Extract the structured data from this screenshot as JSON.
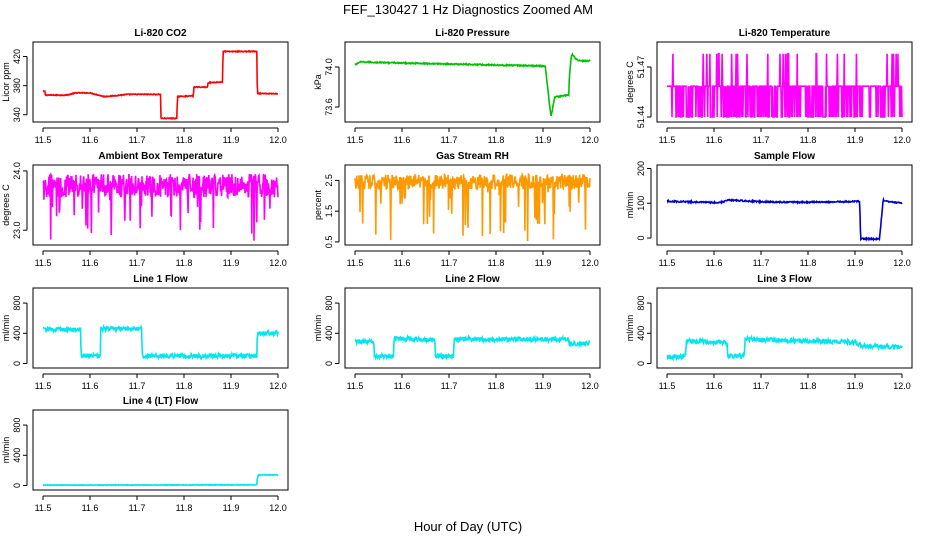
{
  "figure": {
    "title": "FEF_130427  1 Hz Diagnostics Zoomed AM",
    "xlabel": "Hour of Day (UTC)"
  },
  "chart_data": [
    {
      "id": "co2",
      "type": "line",
      "title": "Li-820 CO2",
      "ylabel": "Licor ppm",
      "color": "#ff0000",
      "xlim": [
        11.5,
        12.0
      ],
      "ylim": [
        330,
        440
      ],
      "xticks": [
        "11.5",
        "11.6",
        "11.7",
        "11.8",
        "11.9",
        "12.0"
      ],
      "yticks": [
        {
          "v": 340,
          "label": "340"
        },
        {
          "v": 380,
          "label": "380"
        },
        {
          "v": 420,
          "label": "420"
        }
      ],
      "noise": 0.6,
      "series": [
        {
          "x": [
            11.5,
            11.504,
            11.505,
            11.55,
            11.57,
            11.6,
            11.63,
            11.65,
            11.68,
            11.69,
            11.75,
            11.751,
            11.785,
            11.786,
            11.82,
            11.821,
            11.85,
            11.851,
            11.882,
            11.883,
            11.955,
            11.956,
            12.0
          ],
          "y": [
            372,
            372,
            367,
            367,
            370,
            370,
            365,
            366,
            368,
            368,
            368,
            335,
            335,
            365,
            366,
            378,
            378,
            384,
            385,
            427,
            427,
            369,
            369
          ]
        }
      ]
    },
    {
      "id": "pressure",
      "type": "line",
      "title": "Li-820 Pressure",
      "ylabel": "kPa",
      "color": "#00c000",
      "xlim": [
        11.5,
        12.0
      ],
      "ylim": [
        73.45,
        74.25
      ],
      "xticks": [
        "11.5",
        "11.6",
        "11.7",
        "11.8",
        "11.9",
        "12.0"
      ],
      "yticks": [
        {
          "v": 73.6,
          "label": "73.6"
        },
        {
          "v": 74.0,
          "label": "74.0"
        }
      ],
      "noise": 0.006,
      "series": [
        {
          "x": [
            11.5,
            11.51,
            11.6,
            11.7,
            11.8,
            11.9,
            11.905,
            11.915,
            11.917,
            11.925,
            11.955,
            11.956,
            11.96,
            11.962,
            11.97,
            11.98,
            12.0
          ],
          "y": [
            74.02,
            74.05,
            74.04,
            74.03,
            74.02,
            74.01,
            74.0,
            73.58,
            73.5,
            73.7,
            73.72,
            73.9,
            74.1,
            74.13,
            74.08,
            74.06,
            74.06
          ]
        }
      ]
    },
    {
      "id": "temperature",
      "type": "line",
      "title": "Li-820 Temperature",
      "ylabel": "degrees C",
      "color": "#ff00ff",
      "xlim": [
        11.5,
        12.0
      ],
      "ylim": [
        51.437,
        51.485
      ],
      "xticks": [
        "11.5",
        "11.6",
        "11.7",
        "11.8",
        "11.9",
        "12.0"
      ],
      "yticks": [
        {
          "v": 51.44,
          "label": "51.44"
        },
        {
          "v": 51.47,
          "label": "51.47"
        }
      ],
      "levels": [
        51.44,
        51.4585,
        51.478
      ],
      "series": []
    },
    {
      "id": "ambient",
      "type": "line",
      "title": "Ambient Box Temperature",
      "ylabel": "degrees C",
      "color": "#ff00ff",
      "xlim": [
        11.5,
        12.0
      ],
      "ylim": [
        22.75,
        24.1
      ],
      "xticks": [
        "11.5",
        "11.6",
        "11.7",
        "11.8",
        "11.9",
        "12.0"
      ],
      "yticks": [
        {
          "v": 23.0,
          "label": "23.0"
        },
        {
          "v": 24.0,
          "label": "24.0"
        }
      ],
      "band": [
        23.55,
        23.95
      ],
      "spike_min": 22.8,
      "series": []
    },
    {
      "id": "rh",
      "type": "line",
      "title": "Gas Stream RH",
      "ylabel": "percent",
      "color": "#ff9900",
      "xlim": [
        11.5,
        12.0
      ],
      "ylim": [
        0.4,
        3.0
      ],
      "xticks": [
        "11.5",
        "11.6",
        "11.7",
        "11.8",
        "11.9",
        "12.0"
      ],
      "yticks": [
        {
          "v": 0.5,
          "label": "0.5"
        },
        {
          "v": 1.5,
          "label": "1.5"
        },
        {
          "v": 2.5,
          "label": "2.5"
        }
      ],
      "band": [
        2.2,
        2.7
      ],
      "spike_min": 0.5,
      "series": []
    },
    {
      "id": "sampleflow",
      "type": "line",
      "title": "Sample Flow",
      "ylabel": "ml/min",
      "color": "#0000cc",
      "xlim": [
        11.5,
        12.0
      ],
      "ylim": [
        -20,
        210
      ],
      "xticks": [
        "11.5",
        "11.6",
        "11.7",
        "11.8",
        "11.9",
        "12.0"
      ],
      "yticks": [
        {
          "v": 0,
          "label": "0"
        },
        {
          "v": 100,
          "label": "100"
        },
        {
          "v": 200,
          "label": "200"
        }
      ],
      "noise": 2,
      "series": [
        {
          "x": [
            11.5,
            11.55,
            11.6,
            11.62,
            11.63,
            11.7,
            11.8,
            11.9,
            11.91,
            11.912,
            11.95,
            11.952,
            11.96,
            11.97,
            11.99,
            12.0
          ],
          "y": [
            106,
            104,
            102,
            104,
            110,
            104,
            103,
            105,
            106,
            -2,
            -3,
            -3,
            110,
            104,
            102,
            100
          ]
        }
      ]
    },
    {
      "id": "line1",
      "type": "line",
      "title": "Line 1 Flow",
      "ylabel": "ml/min",
      "color": "#00e5ee",
      "xlim": [
        11.5,
        12.0
      ],
      "ylim": [
        -60,
        1000
      ],
      "xticks": [
        "11.5",
        "11.6",
        "11.7",
        "11.8",
        "11.9",
        "12.0"
      ],
      "yticks": [
        {
          "v": 0,
          "label": "0"
        },
        {
          "v": 400,
          "label": "400"
        },
        {
          "v": 800,
          "label": "800"
        }
      ],
      "noise": 28,
      "series": [
        {
          "x": [
            11.5,
            11.58,
            11.581,
            11.622,
            11.623,
            11.71,
            11.711,
            11.955,
            11.956,
            12.0
          ],
          "y": [
            450,
            450,
            100,
            100,
            460,
            460,
            100,
            100,
            400,
            400
          ]
        }
      ]
    },
    {
      "id": "line2",
      "type": "line",
      "title": "Line 2 Flow",
      "ylabel": "ml/min",
      "color": "#00e5ee",
      "xlim": [
        11.5,
        12.0
      ],
      "ylim": [
        -60,
        1000
      ],
      "xticks": [
        "11.5",
        "11.6",
        "11.7",
        "11.8",
        "11.9",
        "12.0"
      ],
      "yticks": [
        {
          "v": 0,
          "label": "0"
        },
        {
          "v": 400,
          "label": "400"
        },
        {
          "v": 800,
          "label": "800"
        }
      ],
      "noise": 30,
      "series": [
        {
          "x": [
            11.5,
            11.54,
            11.541,
            11.582,
            11.583,
            11.67,
            11.671,
            11.71,
            11.711,
            11.955,
            11.956,
            12.0
          ],
          "y": [
            290,
            290,
            100,
            100,
            330,
            310,
            100,
            100,
            320,
            320,
            260,
            270
          ]
        }
      ]
    },
    {
      "id": "line3",
      "type": "line",
      "title": "Line 3 Flow",
      "ylabel": "ml/min",
      "color": "#00e5ee",
      "xlim": [
        11.5,
        12.0
      ],
      "ylim": [
        -60,
        1000
      ],
      "xticks": [
        "11.5",
        "11.6",
        "11.7",
        "11.8",
        "11.9",
        "12.0"
      ],
      "yticks": [
        {
          "v": 0,
          "label": "0"
        },
        {
          "v": 400,
          "label": "400"
        },
        {
          "v": 800,
          "label": "800"
        }
      ],
      "noise": 30,
      "series": [
        {
          "x": [
            11.5,
            11.54,
            11.541,
            11.628,
            11.629,
            11.665,
            11.666,
            11.9,
            11.91,
            11.915,
            12.0
          ],
          "y": [
            80,
            100,
            300,
            280,
            100,
            100,
            320,
            280,
            250,
            230,
            220
          ]
        }
      ]
    },
    {
      "id": "line4",
      "type": "line",
      "title": "Line 4 (LT) Flow",
      "ylabel": "ml/min",
      "color": "#00e5ee",
      "xlim": [
        11.5,
        12.0
      ],
      "ylim": [
        -60,
        1000
      ],
      "xticks": [
        "11.5",
        "11.6",
        "11.7",
        "11.8",
        "11.9",
        "12.0"
      ],
      "yticks": [
        {
          "v": 0,
          "label": "0"
        },
        {
          "v": 400,
          "label": "400"
        },
        {
          "v": 800,
          "label": "800"
        }
      ],
      "noise": 4,
      "series": [
        {
          "x": [
            11.5,
            11.7,
            11.955,
            11.956,
            11.958,
            11.965,
            12.0
          ],
          "y": [
            5,
            6,
            8,
            100,
            140,
            140,
            140
          ]
        }
      ]
    }
  ]
}
